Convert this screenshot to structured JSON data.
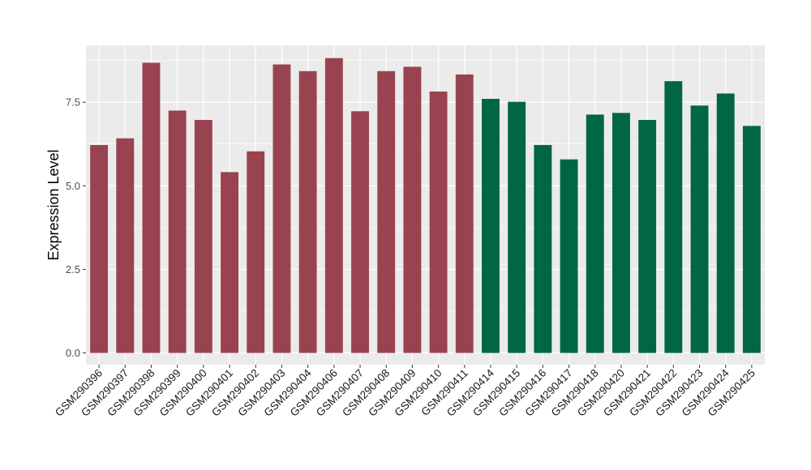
{
  "chart_data": {
    "type": "bar",
    "title": "",
    "xlabel": "",
    "ylabel": "Expression Level",
    "ylim": [
      -0.35,
      9.2
    ],
    "yticks": [
      0.0,
      2.5,
      5.0,
      7.5
    ],
    "ytick_labels": [
      "0.0",
      "2.5",
      "5.0",
      "7.5"
    ],
    "grid": true,
    "legend": "none",
    "categories": [
      "GSM290396",
      "GSM290397",
      "GSM290398",
      "GSM290399",
      "GSM290400",
      "GSM290401",
      "GSM290402",
      "GSM290403",
      "GSM290404",
      "GSM290406",
      "GSM290407",
      "GSM290408",
      "GSM290409",
      "GSM290410",
      "GSM290411",
      "GSM290414",
      "GSM290415",
      "GSM290416",
      "GSM290417",
      "GSM290418",
      "GSM290420",
      "GSM290421",
      "GSM290422",
      "GSM290423",
      "GSM290424",
      "GSM290425"
    ],
    "values": [
      6.22,
      6.42,
      8.68,
      7.25,
      6.97,
      5.41,
      6.03,
      8.63,
      8.43,
      8.82,
      7.23,
      8.43,
      8.56,
      7.82,
      8.33,
      7.6,
      7.51,
      6.22,
      5.79,
      7.13,
      7.18,
      6.97,
      8.13,
      7.4,
      7.76,
      6.79
    ],
    "bar_colors": [
      "#9a4350",
      "#9a4350",
      "#9a4350",
      "#9a4350",
      "#9a4350",
      "#9a4350",
      "#9a4350",
      "#9a4350",
      "#9a4350",
      "#9a4350",
      "#9a4350",
      "#9a4350",
      "#9a4350",
      "#9a4350",
      "#9a4350",
      "#006644",
      "#006644",
      "#006644",
      "#006644",
      "#006644",
      "#006644",
      "#006644",
      "#006644",
      "#006644",
      "#006644",
      "#006644"
    ],
    "panel_background": "#ebebeb",
    "grid_color": "#ffffff"
  }
}
